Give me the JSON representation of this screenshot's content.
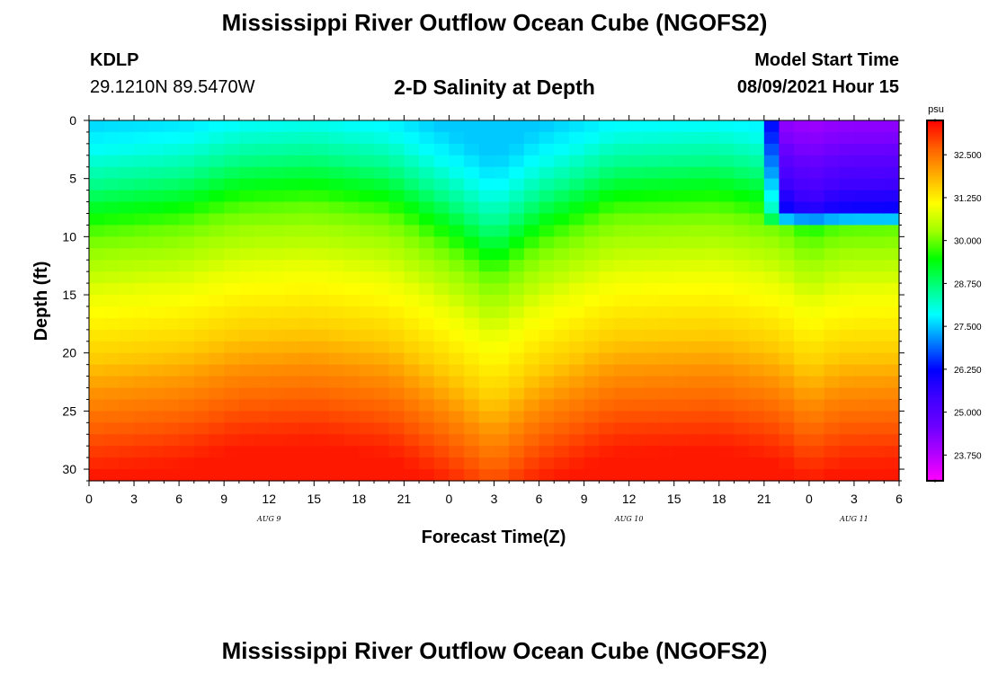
{
  "header": {
    "title": "Mississippi River Outflow Ocean Cube (NGOFS2)",
    "station_code": "KDLP",
    "station_coords": "29.1210N  89.5470W",
    "subtitle": "2-D Salinity at Depth",
    "model_start_label": "Model Start Time",
    "model_start_value": "08/09/2021 Hour 15"
  },
  "footer": {
    "title": "Mississippi River Outflow Ocean Cube (NGOFS2)"
  },
  "chart_data": {
    "type": "heatmap",
    "xlabel": "Forecast Time(Z)",
    "ylabel": "Depth (ft)",
    "xlim": [
      0,
      54
    ],
    "ylim": [
      0,
      31
    ],
    "y_inverted": true,
    "x_tick_values": [
      0,
      3,
      6,
      9,
      12,
      15,
      18,
      21,
      24,
      27,
      30,
      33,
      36,
      39,
      42,
      45,
      48,
      51,
      54
    ],
    "x_tick_labels": [
      "0",
      "3",
      "6",
      "9",
      "12",
      "15",
      "18",
      "21",
      "0",
      "3",
      "6",
      "9",
      "12",
      "15",
      "18",
      "21",
      "0",
      "3",
      "6"
    ],
    "y_tick_values": [
      0,
      5,
      10,
      15,
      20,
      25,
      30
    ],
    "y_tick_labels": [
      "0",
      "5",
      "10",
      "15",
      "20",
      "25",
      "30"
    ],
    "date_labels": [
      {
        "text": "AUG 9",
        "x": 12
      },
      {
        "text": "AUG 10",
        "x": 36
      },
      {
        "text": "AUG 11",
        "x": 51
      }
    ],
    "colorbar": {
      "unit": "psu",
      "tick_values": [
        32.5,
        31.25,
        30.0,
        28.75,
        27.5,
        26.25,
        25.0,
        23.75
      ],
      "tick_labels": [
        "32.500",
        "31.250",
        "30.000",
        "28.750",
        "27.500",
        "26.250",
        "25.000",
        "23.750"
      ],
      "range": [
        23.0,
        33.5
      ]
    },
    "field_description": "Salinity increases with depth: ~27-28 psu at surface (magenta ~24 psu in upper right after hour 45), ~30 psu near 10-13 ft, ~31 psu near 17-20 ft, ~32.3 psu near 25 ft, ~33.3 psu at 30 ft. Isohalines dip deeper around hour 27 and are shallower around hours 15 and 42.",
    "colors": {
      "stops": [
        "#ff00ff",
        "#b000ff",
        "#6a00ff",
        "#3f00ff",
        "#0000ff",
        "#0080ff",
        "#00ffff",
        "#00ff80",
        "#00ff00",
        "#a0ff00",
        "#ffff00",
        "#ffb000",
        "#ff6000",
        "#ff0000"
      ]
    }
  }
}
